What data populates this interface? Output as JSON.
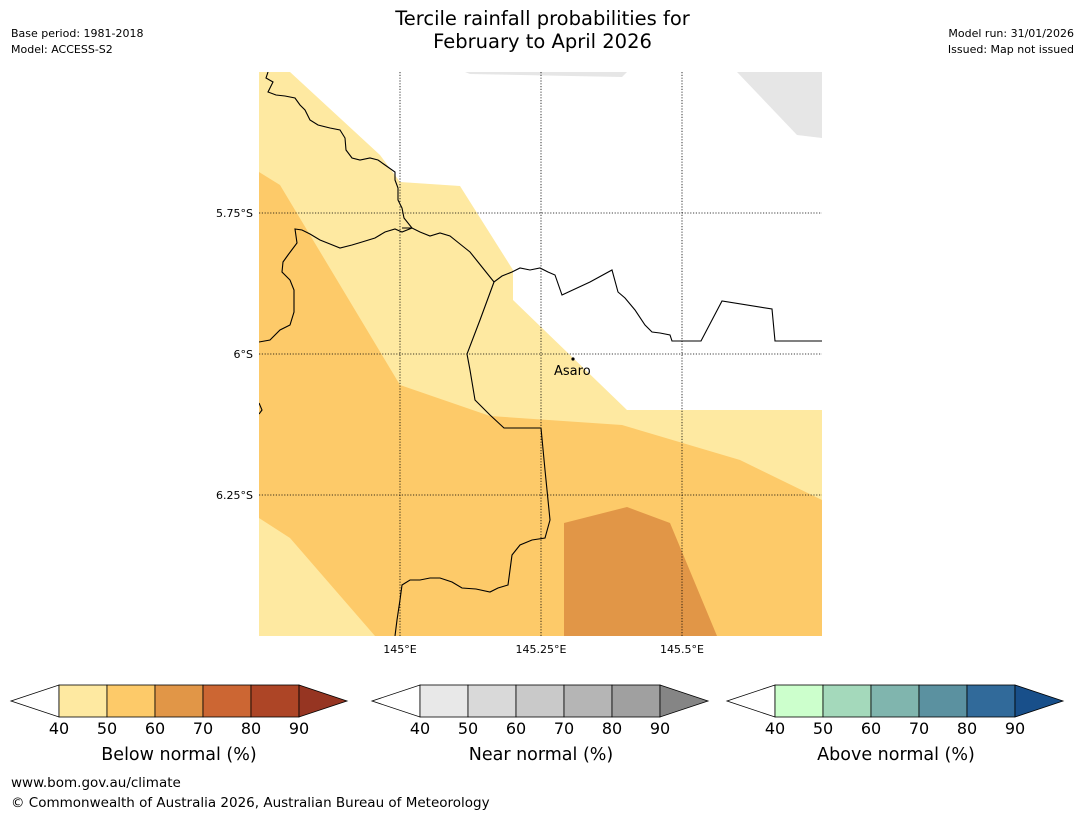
{
  "title": {
    "line1": "Tercile rainfall probabilities for",
    "line2": "February to April 2026"
  },
  "meta_left": {
    "base_period": "Base period: 1981-2018",
    "model": "Model: ACCESS-S2"
  },
  "meta_right": {
    "model_run": "Model run: 31/01/2026",
    "issued": "Issued: Map not issued"
  },
  "map": {
    "lat_labels": [
      "5.75°S",
      "6°S",
      "6.25°S"
    ],
    "lon_labels": [
      "145°E",
      "145.25°E",
      "145.5°E"
    ],
    "place": "Asaro",
    "colors": {
      "below_40_50": "#fee9a1",
      "below_50_60": "#fdca69",
      "below_60_70": "#e19647",
      "near_40_50": "#e6e6e6",
      "ocean": "#ffffff",
      "gridline": "#000000",
      "border": "#000000"
    }
  },
  "colorbars": [
    {
      "title": "Below normal (%)",
      "ticks": [
        "40",
        "50",
        "60",
        "70",
        "80",
        "90"
      ],
      "colors": [
        "#ffffff",
        "#fee9a1",
        "#fdca69",
        "#e19647",
        "#cc6633",
        "#ad4526",
        "#963522"
      ]
    },
    {
      "title": "Near normal (%)",
      "ticks": [
        "40",
        "50",
        "60",
        "70",
        "80",
        "90"
      ],
      "colors": [
        "#ffffff",
        "#e8e8e8",
        "#d9d9d9",
        "#c9c9c9",
        "#b5b5b5",
        "#a0a0a0",
        "#858585"
      ]
    },
    {
      "title": "Above normal (%)",
      "ticks": [
        "40",
        "50",
        "60",
        "70",
        "80",
        "90"
      ],
      "colors": [
        "#ffffff",
        "#ccffcc",
        "#a4d9bb",
        "#80b5ae",
        "#5b91a0",
        "#316a9a",
        "#184f8a"
      ]
    }
  ],
  "footer": {
    "url": "www.bom.gov.au/climate",
    "copyright": "© Commonwealth of Australia 2026, Australian Bureau of Meteorology"
  }
}
